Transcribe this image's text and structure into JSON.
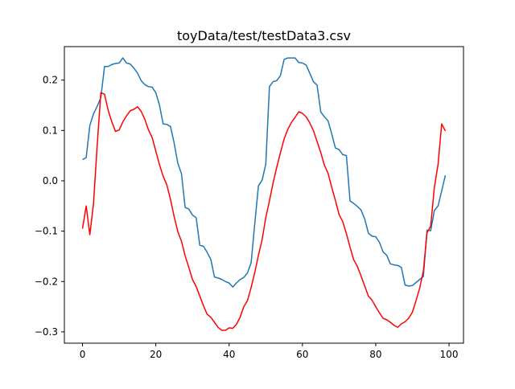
{
  "chart_data": {
    "type": "line",
    "title": "toyData/test/testData3.csv",
    "xlabel": "",
    "ylabel": "",
    "xlim": [
      -4.95,
      103.95
    ],
    "ylim": [
      -0.3225,
      0.2665
    ],
    "xticks": [
      0,
      20,
      40,
      60,
      80,
      100
    ],
    "yticks": [
      -0.3,
      -0.2,
      -0.1,
      0.0,
      0.1,
      0.2
    ],
    "xtick_labels": [
      "0",
      "20",
      "40",
      "60",
      "80",
      "100"
    ],
    "ytick_labels": [
      "−0.3",
      "−0.2",
      "−0.1",
      "0.0",
      "0.1",
      "0.2"
    ],
    "grid": false,
    "x": [
      0,
      1,
      2,
      3,
      4,
      5,
      6,
      7,
      8,
      9,
      10,
      11,
      12,
      13,
      14,
      15,
      16,
      17,
      18,
      19,
      20,
      21,
      22,
      23,
      24,
      25,
      26,
      27,
      28,
      29,
      30,
      31,
      32,
      33,
      34,
      35,
      36,
      37,
      38,
      39,
      40,
      41,
      42,
      43,
      44,
      45,
      46,
      47,
      48,
      49,
      50,
      51,
      52,
      53,
      54,
      55,
      56,
      57,
      58,
      59,
      60,
      61,
      62,
      63,
      64,
      65,
      66,
      67,
      68,
      69,
      70,
      71,
      72,
      73,
      74,
      75,
      76,
      77,
      78,
      79,
      80,
      81,
      82,
      83,
      84,
      85,
      86,
      87,
      88,
      89,
      90,
      91,
      92,
      93,
      94,
      95,
      96,
      97,
      98,
      99
    ],
    "series": [
      {
        "color": "#1f77b4",
        "values": [
          0.042,
          0.046,
          0.11,
          0.133,
          0.148,
          0.165,
          0.227,
          0.227,
          0.231,
          0.233,
          0.234,
          0.244,
          0.234,
          0.232,
          0.224,
          0.214,
          0.199,
          0.191,
          0.187,
          0.186,
          0.175,
          0.15,
          0.113,
          0.112,
          0.108,
          0.075,
          0.035,
          0.014,
          -0.053,
          -0.056,
          -0.068,
          -0.073,
          -0.128,
          -0.13,
          -0.142,
          -0.156,
          -0.191,
          -0.193,
          -0.196,
          -0.2,
          -0.203,
          -0.211,
          -0.203,
          -0.196,
          -0.192,
          -0.183,
          -0.163,
          -0.085,
          -0.01,
          0.001,
          0.033,
          0.187,
          0.197,
          0.199,
          0.209,
          0.241,
          0.244,
          0.244,
          0.244,
          0.235,
          0.234,
          0.23,
          0.214,
          0.197,
          0.19,
          0.137,
          0.127,
          0.119,
          0.093,
          0.065,
          0.062,
          0.052,
          0.05,
          -0.04,
          -0.045,
          -0.051,
          -0.058,
          -0.076,
          -0.104,
          -0.11,
          -0.111,
          -0.122,
          -0.141,
          -0.148,
          -0.165,
          -0.167,
          -0.168,
          -0.172,
          -0.207,
          -0.209,
          -0.208,
          -0.202,
          -0.196,
          -0.19,
          -0.098,
          -0.099,
          -0.059,
          -0.05,
          -0.02,
          0.011
        ]
      },
      {
        "color": "#ff0000",
        "values": [
          -0.095,
          -0.05,
          -0.107,
          -0.045,
          0.07,
          0.175,
          0.172,
          0.14,
          0.117,
          0.098,
          0.101,
          0.117,
          0.129,
          0.139,
          0.142,
          0.147,
          0.138,
          0.122,
          0.101,
          0.086,
          0.059,
          0.032,
          0.009,
          -0.008,
          -0.037,
          -0.071,
          -0.101,
          -0.12,
          -0.149,
          -0.172,
          -0.196,
          -0.21,
          -0.229,
          -0.248,
          -0.265,
          -0.271,
          -0.281,
          -0.291,
          -0.297,
          -0.297,
          -0.292,
          -0.293,
          -0.285,
          -0.271,
          -0.25,
          -0.238,
          -0.212,
          -0.182,
          -0.148,
          -0.117,
          -0.073,
          -0.04,
          -0.004,
          0.027,
          0.056,
          0.083,
          0.102,
          0.116,
          0.126,
          0.137,
          0.134,
          0.127,
          0.115,
          0.1,
          0.078,
          0.056,
          0.031,
          0.015,
          -0.013,
          -0.039,
          -0.067,
          -0.081,
          -0.105,
          -0.132,
          -0.157,
          -0.17,
          -0.189,
          -0.209,
          -0.229,
          -0.237,
          -0.25,
          -0.262,
          -0.273,
          -0.276,
          -0.281,
          -0.287,
          -0.291,
          -0.284,
          -0.28,
          -0.273,
          -0.261,
          -0.238,
          -0.213,
          -0.179,
          -0.103,
          -0.09,
          -0.013,
          0.032,
          0.113,
          0.099
        ]
      }
    ]
  }
}
